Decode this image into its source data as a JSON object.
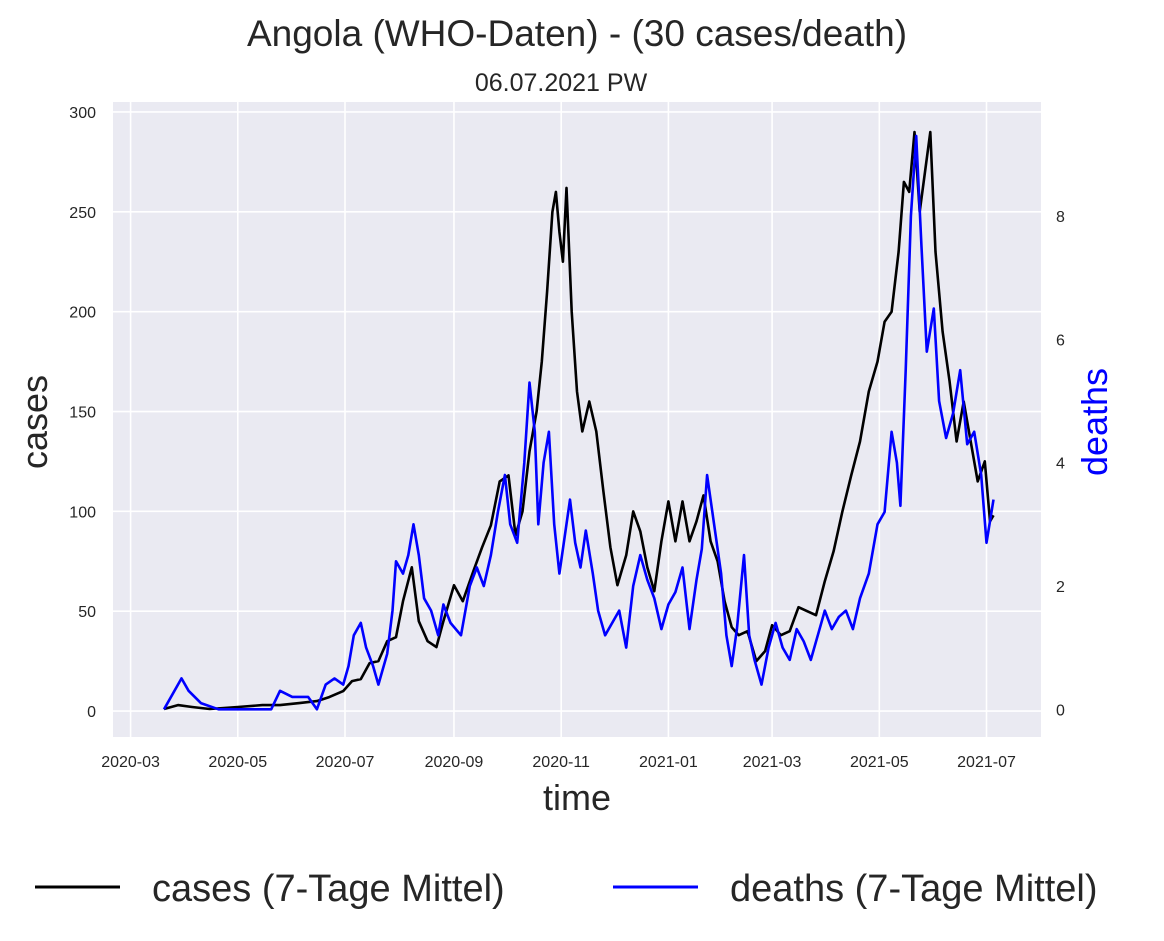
{
  "chart_data": {
    "type": "line",
    "title": "Angola (WHO-Daten) - (30 cases/death)",
    "subtitle": "06.07.2021 PW",
    "xlabel": "time",
    "ylabel": "cases",
    "y2label": "deaths",
    "x_ticks": [
      "2020-03",
      "2020-05",
      "2020-07",
      "2020-09",
      "2020-11",
      "2021-01",
      "2021-03",
      "2021-05",
      "2021-07"
    ],
    "y_ticks": [
      "0",
      "50",
      "100",
      "150",
      "200",
      "250",
      "300"
    ],
    "y2_ticks": [
      "0",
      "2",
      "4",
      "6",
      "8"
    ],
    "ylim": [
      -13,
      305
    ],
    "y2lim": [
      -0.45,
      9.85
    ],
    "grid": true,
    "legend_position": "bottom",
    "series": [
      {
        "name": "cases (7-Tage Mittel)",
        "axis": "left",
        "color": "#000000",
        "points": [
          [
            "2020-03-20",
            1
          ],
          [
            "2020-03-28",
            3
          ],
          [
            "2020-04-05",
            2
          ],
          [
            "2020-04-15",
            1
          ],
          [
            "2020-05-01",
            2
          ],
          [
            "2020-05-15",
            3
          ],
          [
            "2020-05-25",
            3
          ],
          [
            "2020-06-05",
            4
          ],
          [
            "2020-06-15",
            5
          ],
          [
            "2020-06-22",
            7
          ],
          [
            "2020-06-30",
            10
          ],
          [
            "2020-07-05",
            15
          ],
          [
            "2020-07-10",
            16
          ],
          [
            "2020-07-15",
            24
          ],
          [
            "2020-07-20",
            25
          ],
          [
            "2020-07-25",
            35
          ],
          [
            "2020-07-30",
            37
          ],
          [
            "2020-08-03",
            55
          ],
          [
            "2020-08-08",
            72
          ],
          [
            "2020-08-12",
            45
          ],
          [
            "2020-08-17",
            35
          ],
          [
            "2020-08-22",
            32
          ],
          [
            "2020-08-26",
            45
          ],
          [
            "2020-09-01",
            63
          ],
          [
            "2020-09-06",
            55
          ],
          [
            "2020-09-12",
            70
          ],
          [
            "2020-09-17",
            82
          ],
          [
            "2020-09-22",
            93
          ],
          [
            "2020-09-27",
            115
          ],
          [
            "2020-10-02",
            118
          ],
          [
            "2020-10-06",
            88
          ],
          [
            "2020-10-10",
            100
          ],
          [
            "2020-10-14",
            130
          ],
          [
            "2020-10-18",
            150
          ],
          [
            "2020-10-21",
            175
          ],
          [
            "2020-10-24",
            210
          ],
          [
            "2020-10-27",
            250
          ],
          [
            "2020-10-29",
            260
          ],
          [
            "2020-10-31",
            240
          ],
          [
            "2020-11-02",
            225
          ],
          [
            "2020-11-04",
            262
          ],
          [
            "2020-11-07",
            200
          ],
          [
            "2020-11-10",
            160
          ],
          [
            "2020-11-13",
            140
          ],
          [
            "2020-11-17",
            155
          ],
          [
            "2020-11-21",
            140
          ],
          [
            "2020-11-25",
            110
          ],
          [
            "2020-11-29",
            82
          ],
          [
            "2020-12-03",
            63
          ],
          [
            "2020-12-08",
            78
          ],
          [
            "2020-12-12",
            100
          ],
          [
            "2020-12-16",
            90
          ],
          [
            "2020-12-20",
            72
          ],
          [
            "2020-12-24",
            60
          ],
          [
            "2020-12-28",
            85
          ],
          [
            "2021-01-01",
            105
          ],
          [
            "2021-01-05",
            85
          ],
          [
            "2021-01-09",
            105
          ],
          [
            "2021-01-13",
            85
          ],
          [
            "2021-01-17",
            95
          ],
          [
            "2021-01-21",
            108
          ],
          [
            "2021-01-25",
            85
          ],
          [
            "2021-01-29",
            75
          ],
          [
            "2021-02-02",
            55
          ],
          [
            "2021-02-06",
            42
          ],
          [
            "2021-02-10",
            38
          ],
          [
            "2021-02-15",
            40
          ],
          [
            "2021-02-20",
            25
          ],
          [
            "2021-02-25",
            30
          ],
          [
            "2021-03-01",
            43
          ],
          [
            "2021-03-06",
            38
          ],
          [
            "2021-03-11",
            40
          ],
          [
            "2021-03-16",
            52
          ],
          [
            "2021-03-21",
            50
          ],
          [
            "2021-03-26",
            48
          ],
          [
            "2021-03-31",
            65
          ],
          [
            "2021-04-05",
            80
          ],
          [
            "2021-04-10",
            100
          ],
          [
            "2021-04-15",
            118
          ],
          [
            "2021-04-20",
            135
          ],
          [
            "2021-04-25",
            160
          ],
          [
            "2021-04-30",
            175
          ],
          [
            "2021-05-04",
            195
          ],
          [
            "2021-05-08",
            200
          ],
          [
            "2021-05-12",
            230
          ],
          [
            "2021-05-15",
            265
          ],
          [
            "2021-05-18",
            260
          ],
          [
            "2021-05-21",
            290
          ],
          [
            "2021-05-24",
            250
          ],
          [
            "2021-05-27",
            270
          ],
          [
            "2021-05-30",
            290
          ],
          [
            "2021-06-02",
            230
          ],
          [
            "2021-06-06",
            190
          ],
          [
            "2021-06-10",
            165
          ],
          [
            "2021-06-14",
            135
          ],
          [
            "2021-06-18",
            155
          ],
          [
            "2021-06-22",
            135
          ],
          [
            "2021-06-26",
            115
          ],
          [
            "2021-06-30",
            125
          ],
          [
            "2021-07-03",
            95
          ],
          [
            "2021-07-05",
            98
          ]
        ]
      },
      {
        "name": "deaths (7-Tage Mittel)",
        "axis": "right",
        "color": "#0000ff",
        "points": [
          [
            "2020-03-20",
            0.0
          ],
          [
            "2020-03-30",
            0.5
          ],
          [
            "2020-04-03",
            0.3
          ],
          [
            "2020-04-10",
            0.1
          ],
          [
            "2020-04-20",
            0.0
          ],
          [
            "2020-05-01",
            0.0
          ],
          [
            "2020-05-15",
            0.0
          ],
          [
            "2020-05-20",
            0.0
          ],
          [
            "2020-05-25",
            0.3
          ],
          [
            "2020-06-01",
            0.2
          ],
          [
            "2020-06-10",
            0.2
          ],
          [
            "2020-06-15",
            0.0
          ],
          [
            "2020-06-20",
            0.4
          ],
          [
            "2020-06-25",
            0.5
          ],
          [
            "2020-06-30",
            0.4
          ],
          [
            "2020-07-03",
            0.7
          ],
          [
            "2020-07-06",
            1.2
          ],
          [
            "2020-07-10",
            1.4
          ],
          [
            "2020-07-13",
            1.0
          ],
          [
            "2020-07-17",
            0.7
          ],
          [
            "2020-07-20",
            0.4
          ],
          [
            "2020-07-25",
            0.9
          ],
          [
            "2020-07-28",
            1.6
          ],
          [
            "2020-07-30",
            2.4
          ],
          [
            "2020-08-03",
            2.2
          ],
          [
            "2020-08-06",
            2.5
          ],
          [
            "2020-08-09",
            3.0
          ],
          [
            "2020-08-12",
            2.5
          ],
          [
            "2020-08-15",
            1.8
          ],
          [
            "2020-08-19",
            1.6
          ],
          [
            "2020-08-23",
            1.2
          ],
          [
            "2020-08-26",
            1.7
          ],
          [
            "2020-08-30",
            1.4
          ],
          [
            "2020-09-05",
            1.2
          ],
          [
            "2020-09-10",
            2.0
          ],
          [
            "2020-09-14",
            2.3
          ],
          [
            "2020-09-18",
            2.0
          ],
          [
            "2020-09-22",
            2.5
          ],
          [
            "2020-09-26",
            3.2
          ],
          [
            "2020-09-30",
            3.8
          ],
          [
            "2020-10-03",
            3.0
          ],
          [
            "2020-10-07",
            2.7
          ],
          [
            "2020-10-11",
            4.0
          ],
          [
            "2020-10-14",
            5.3
          ],
          [
            "2020-10-17",
            4.5
          ],
          [
            "2020-10-19",
            3.0
          ],
          [
            "2020-10-22",
            4.0
          ],
          [
            "2020-10-25",
            4.5
          ],
          [
            "2020-10-28",
            3.0
          ],
          [
            "2020-10-31",
            2.2
          ],
          [
            "2020-11-03",
            2.8
          ],
          [
            "2020-11-06",
            3.4
          ],
          [
            "2020-11-09",
            2.7
          ],
          [
            "2020-11-12",
            2.3
          ],
          [
            "2020-11-15",
            2.9
          ],
          [
            "2020-11-19",
            2.2
          ],
          [
            "2020-11-22",
            1.6
          ],
          [
            "2020-11-26",
            1.2
          ],
          [
            "2020-11-30",
            1.4
          ],
          [
            "2020-12-04",
            1.6
          ],
          [
            "2020-12-08",
            1.0
          ],
          [
            "2020-12-12",
            2.0
          ],
          [
            "2020-12-16",
            2.5
          ],
          [
            "2020-12-20",
            2.1
          ],
          [
            "2020-12-24",
            1.8
          ],
          [
            "2020-12-28",
            1.3
          ],
          [
            "2021-01-01",
            1.7
          ],
          [
            "2021-01-05",
            1.9
          ],
          [
            "2021-01-09",
            2.3
          ],
          [
            "2021-01-13",
            1.3
          ],
          [
            "2021-01-17",
            2.1
          ],
          [
            "2021-01-20",
            2.6
          ],
          [
            "2021-01-23",
            3.8
          ],
          [
            "2021-01-27",
            3.0
          ],
          [
            "2021-01-31",
            2.2
          ],
          [
            "2021-02-03",
            1.2
          ],
          [
            "2021-02-06",
            0.7
          ],
          [
            "2021-02-09",
            1.3
          ],
          [
            "2021-02-13",
            2.5
          ],
          [
            "2021-02-16",
            1.2
          ],
          [
            "2021-02-19",
            0.8
          ],
          [
            "2021-02-23",
            0.4
          ],
          [
            "2021-02-27",
            1.0
          ],
          [
            "2021-03-03",
            1.4
          ],
          [
            "2021-03-07",
            1.0
          ],
          [
            "2021-03-11",
            0.8
          ],
          [
            "2021-03-15",
            1.3
          ],
          [
            "2021-03-19",
            1.1
          ],
          [
            "2021-03-23",
            0.8
          ],
          [
            "2021-03-27",
            1.2
          ],
          [
            "2021-03-31",
            1.6
          ],
          [
            "2021-04-04",
            1.3
          ],
          [
            "2021-04-08",
            1.5
          ],
          [
            "2021-04-12",
            1.6
          ],
          [
            "2021-04-16",
            1.3
          ],
          [
            "2021-04-20",
            1.8
          ],
          [
            "2021-04-25",
            2.2
          ],
          [
            "2021-04-30",
            3.0
          ],
          [
            "2021-05-04",
            3.2
          ],
          [
            "2021-05-08",
            4.5
          ],
          [
            "2021-05-11",
            4.0
          ],
          [
            "2021-05-13",
            3.3
          ],
          [
            "2021-05-16",
            5.5
          ],
          [
            "2021-05-19",
            8.0
          ],
          [
            "2021-05-22",
            9.3
          ],
          [
            "2021-05-25",
            7.5
          ],
          [
            "2021-05-28",
            5.8
          ],
          [
            "2021-06-01",
            6.5
          ],
          [
            "2021-06-04",
            5.0
          ],
          [
            "2021-06-08",
            4.4
          ],
          [
            "2021-06-12",
            4.8
          ],
          [
            "2021-06-16",
            5.5
          ],
          [
            "2021-06-20",
            4.3
          ],
          [
            "2021-06-24",
            4.5
          ],
          [
            "2021-06-28",
            3.8
          ],
          [
            "2021-07-01",
            2.7
          ],
          [
            "2021-07-05",
            3.4
          ]
        ]
      }
    ]
  }
}
